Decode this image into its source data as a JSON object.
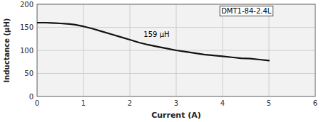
{
  "chart_data": {
    "type": "line",
    "title": "",
    "xlabel": "Current (A)",
    "ylabel": "Inductance (μH)",
    "x": [
      0.0,
      0.05,
      0.1,
      0.2,
      0.3,
      0.4,
      0.5,
      0.6,
      0.7,
      0.8,
      0.9,
      1.0,
      1.2,
      1.4,
      1.6,
      1.8,
      2.0,
      2.2,
      2.4,
      2.6,
      2.8,
      3.0,
      3.2,
      3.4,
      3.6,
      3.8,
      4.0,
      4.2,
      4.4,
      4.6,
      4.8,
      5.0
    ],
    "values": [
      160,
      160,
      160,
      160,
      159.5,
      159,
      158.5,
      158,
      157,
      156,
      154,
      152,
      147,
      141,
      135,
      129,
      123,
      117,
      112,
      108,
      104,
      100,
      97,
      94,
      91,
      89,
      87,
      85,
      83,
      82,
      80,
      78
    ],
    "color": "#111111",
    "xlim": [
      0,
      6
    ],
    "ylim": [
      0,
      200
    ],
    "xticks": [
      0,
      1,
      2,
      3,
      4,
      5,
      6
    ],
    "yticks": [
      0,
      50,
      100,
      150,
      200
    ],
    "grid": true,
    "annotations": [
      "159 μH",
      "DMT1-84-2.4L"
    ]
  }
}
